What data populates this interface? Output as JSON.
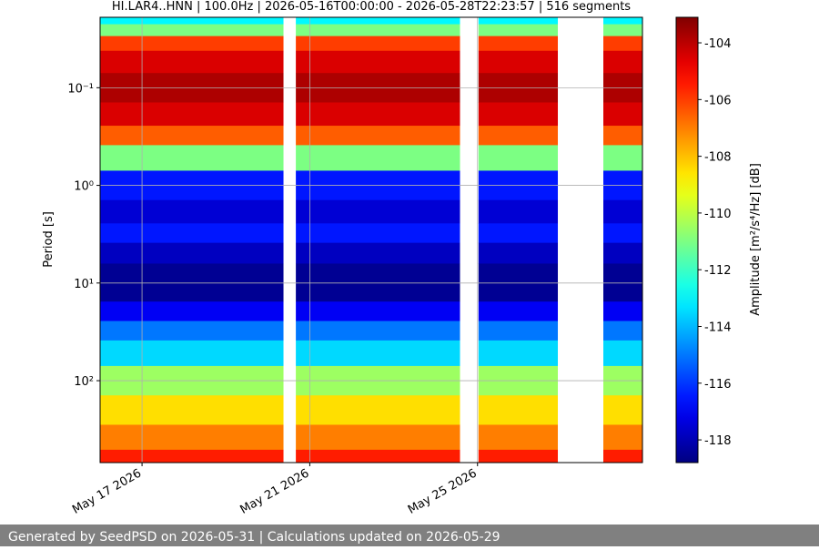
{
  "chart_data": {
    "type": "spectrogram",
    "title": "HI.LAR4..HNN | 100.0Hz | 2026-05-16T00:00:00 - 2026-05-28T22:23:57 | 516 segments",
    "ylabel": "Period [s]",
    "colorbar_label": "Amplitude [m²/s⁴/Hz] [dB]",
    "xlim": [
      "2026-05-16T00:00:00",
      "2026-05-28T22:23:57"
    ],
    "xticks": [
      {
        "value": "2026-05-17T00:00:00",
        "label": "May 17 2026"
      },
      {
        "value": "2026-05-21T00:00:00",
        "label": "May 21 2026"
      },
      {
        "value": "2026-05-25T00:00:00",
        "label": "May 25 2026"
      }
    ],
    "ylim": [
      0.019,
      690
    ],
    "log_y": true,
    "y_inverted": true,
    "yticks": [
      {
        "value": 0.1,
        "label": "10⁻¹"
      },
      {
        "value": 1,
        "label": "10⁰"
      },
      {
        "value": 10,
        "label": "10¹"
      },
      {
        "value": 100,
        "label": "10²"
      }
    ],
    "clim": [
      -118.8,
      -103.1
    ],
    "cticks": [
      -104,
      -106,
      -108,
      -110,
      -112,
      -114,
      -116,
      -118
    ],
    "colormap": "jet",
    "grid": true,
    "data_gaps": [
      [
        "2026-05-20T09:00:00",
        "2026-05-20T16:00:00"
      ],
      [
        "2026-05-24T14:00:00",
        "2026-05-25T00:30:00"
      ],
      [
        "2026-05-26T22:00:00",
        "2026-05-28T00:00:00"
      ]
    ],
    "profile": {
      "period": [
        0.02,
        0.025,
        0.035,
        0.05,
        0.1,
        0.2,
        0.3,
        0.5,
        1,
        2,
        3,
        5,
        8,
        12,
        20,
        30,
        50,
        100,
        200,
        400,
        650
      ],
      "amplitude": [
        -113,
        -111,
        -106,
        -104.5,
        -103.8,
        -104.5,
        -106.5,
        -111,
        -116.5,
        -117.5,
        -116.5,
        -117.8,
        -118.5,
        -118.5,
        -117,
        -115,
        -113.5,
        -110.5,
        -108.5,
        -107,
        -105.5
      ]
    },
    "footer": "Generated by SeedPSD on 2026-05-31 | Calculations updated on 2026-05-29"
  }
}
